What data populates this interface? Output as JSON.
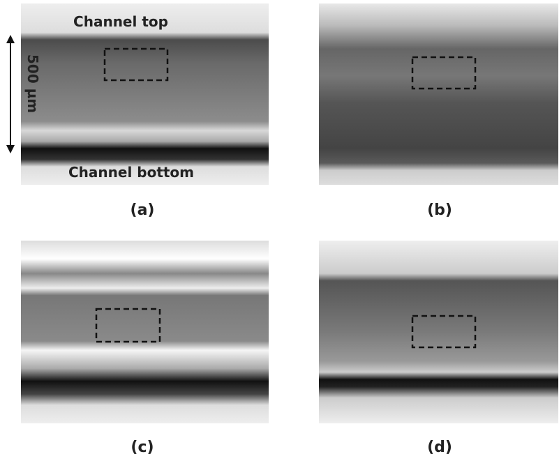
{
  "panels": [
    {
      "label": "(a)",
      "annotations": {
        "top": "Channel top",
        "bottom": "Channel bottom",
        "scale": "500 µm"
      }
    },
    {
      "label": "(b)"
    },
    {
      "label": "(c)"
    },
    {
      "label": "(d)"
    }
  ]
}
